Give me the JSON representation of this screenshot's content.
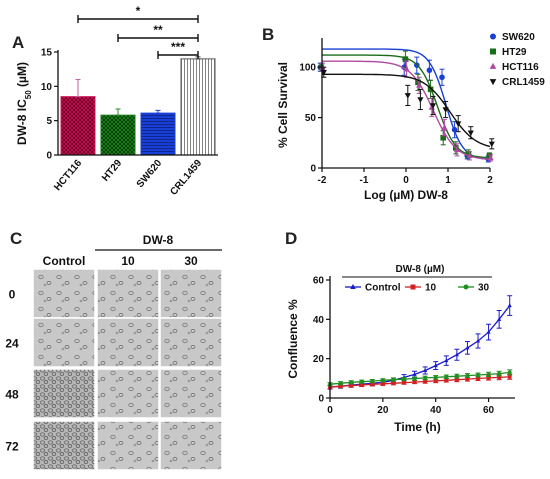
{
  "panels": {
    "a": {
      "letter": "A",
      "chart_data": {
        "type": "bar",
        "ylabel": "DW-8 IC50 (µM)",
        "ylabel_main": "DW-8 IC",
        "ylabel_sub": "50",
        "ylabel_unit": " (µM)",
        "categories": [
          "HCT116",
          "HT29",
          "SW620",
          "CRL1459"
        ],
        "values": [
          8.5,
          5.8,
          6.1,
          14.0
        ],
        "errors": [
          2.5,
          0.9,
          0.4,
          0.3
        ],
        "ylim": [
          0,
          15
        ],
        "yticks": [
          0,
          5,
          10,
          15
        ],
        "bar_colors": [
          "#d4145a",
          "#1a7a1a",
          "#1a3fd4",
          "#aaaaaa"
        ],
        "significance": [
          {
            "from": "HCT116",
            "to": "CRL1459",
            "label": "*"
          },
          {
            "from": "HT29",
            "to": "CRL1459",
            "label": "**"
          },
          {
            "from": "SW620",
            "to": "CRL1459",
            "label": "***"
          }
        ]
      }
    },
    "b": {
      "letter": "B",
      "chart_data": {
        "type": "line",
        "xlabel": "Log (µM)  DW-8",
        "ylabel": "% Cell Survival",
        "xlim": [
          -2,
          2
        ],
        "xticks": [
          -2,
          -1,
          0,
          1,
          2
        ],
        "ylim": [
          0,
          125
        ],
        "yticks": [
          0,
          50,
          100
        ],
        "x": [
          -2,
          0,
          0.3,
          0.6,
          0.9,
          1.2,
          1.5,
          2
        ],
        "series": [
          {
            "name": "SW620",
            "color": "#1a3fd4",
            "marker": "circle",
            "values": [
              100,
              100,
              102,
              97,
              90,
              38,
              12,
              9
            ],
            "errors": [
              4,
              8,
              8,
              10,
              8,
              8,
              3,
              3
            ]
          },
          {
            "name": "HT29",
            "color": "#1a6b1a",
            "marker": "square",
            "values": [
              100,
              108,
              85,
              78,
              30,
              20,
              14,
              12
            ],
            "errors": [
              4,
              8,
              8,
              9,
              7,
              6,
              4,
              3
            ]
          },
          {
            "name": "HCT116",
            "color": "#b04aa0",
            "marker": "triangle-up",
            "values": [
              100,
              98,
              82,
              60,
              40,
              18,
              12,
              10
            ],
            "errors": [
              4,
              8,
              8,
              9,
              8,
              6,
              4,
              3
            ]
          },
          {
            "name": "CRL1459",
            "color": "#111111",
            "marker": "triangle-down",
            "values": [
              95,
              72,
              68,
              62,
              58,
              44,
              35,
              24
            ],
            "errors": [
              5,
              10,
              10,
              9,
              8,
              8,
              6,
              5
            ]
          }
        ],
        "legend_position": "top-right"
      }
    },
    "c": {
      "letter": "C",
      "header": "DW-8",
      "columns": [
        "Control",
        "10",
        "30"
      ],
      "rows": [
        "0",
        "24",
        "48",
        "72"
      ]
    },
    "d": {
      "letter": "D",
      "chart_data": {
        "type": "line",
        "title": "DW-8 (µM)",
        "xlabel": "Time (h)",
        "ylabel": "Confluence %",
        "xlim": [
          0,
          70
        ],
        "xticks": [
          0,
          20,
          40,
          60
        ],
        "ylim": [
          0,
          60
        ],
        "yticks": [
          0,
          20,
          40,
          60
        ],
        "x": [
          0,
          4,
          8,
          12,
          16,
          20,
          24,
          28,
          32,
          36,
          40,
          44,
          48,
          52,
          56,
          60,
          64,
          68
        ],
        "series": [
          {
            "name": "Control",
            "color": "#1a1acc",
            "marker": "triangle-up",
            "values": [
              5.5,
              6,
              6.5,
              7,
              7.5,
              8,
              9,
              10.5,
              12,
              14,
              16.5,
              19,
              22,
              25.5,
              29,
              33.5,
              40,
              47
            ],
            "errors": [
              1,
              1,
              1,
              1,
              1,
              1,
              1.2,
              1.4,
              1.6,
              1.8,
              2,
              2.4,
              2.8,
              3.2,
              3.6,
              4,
              4.5,
              5
            ]
          },
          {
            "name": "10",
            "color": "#d42020",
            "marker": "square",
            "values": [
              5.5,
              6,
              6.3,
              6.6,
              6.9,
              7.2,
              7.5,
              7.8,
              8.1,
              8.4,
              8.7,
              9,
              9.3,
              9.6,
              9.9,
              10.2,
              10.5,
              10.8
            ],
            "errors": [
              0.8,
              0.8,
              0.8,
              0.8,
              0.8,
              0.8,
              0.8,
              0.8,
              0.8,
              0.9,
              0.9,
              0.9,
              1,
              1,
              1,
              1.1,
              1.2,
              1.3
            ]
          },
          {
            "name": "30",
            "color": "#1f8f1f",
            "marker": "circle",
            "values": [
              7,
              7.5,
              8,
              8.3,
              8.6,
              9,
              9.3,
              9.6,
              9.9,
              10.2,
              10.5,
              10.8,
              11.1,
              11.4,
              11.7,
              12,
              12.4,
              13
            ],
            "errors": [
              0.8,
              0.8,
              0.8,
              0.8,
              0.8,
              0.8,
              0.8,
              0.8,
              0.8,
              0.9,
              0.9,
              0.9,
              1,
              1,
              1,
              1.1,
              1.2,
              1.3
            ]
          }
        ],
        "legend_position": "top-left"
      }
    }
  }
}
